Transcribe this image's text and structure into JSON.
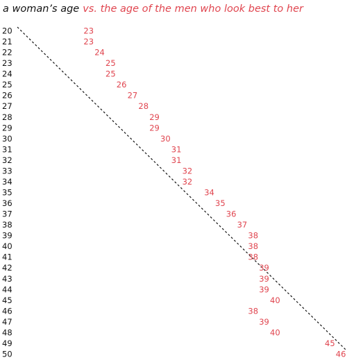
{
  "chart_data": {
    "type": "label-plot",
    "title": "a woman’s age",
    "subtitle": "vs. the age of the men who look best to her",
    "categories": [
      20,
      21,
      22,
      23,
      24,
      25,
      26,
      27,
      28,
      29,
      30,
      31,
      32,
      33,
      34,
      35,
      36,
      37,
      38,
      39,
      40,
      41,
      42,
      43,
      44,
      45,
      46,
      47,
      48,
      49,
      50
    ],
    "values": [
      23,
      23,
      24,
      25,
      25,
      26,
      27,
      28,
      29,
      29,
      30,
      31,
      31,
      32,
      32,
      34,
      35,
      36,
      37,
      38,
      38,
      38,
      39,
      39,
      39,
      40,
      38,
      39,
      40,
      45,
      46
    ],
    "color": "#e0454f",
    "xlim": [
      20,
      50
    ]
  }
}
